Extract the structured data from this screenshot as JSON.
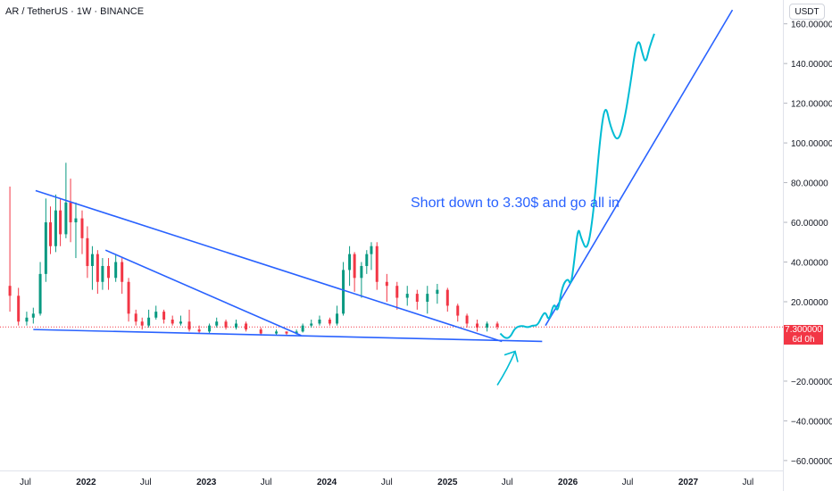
{
  "header": {
    "symbol": "AR / TetherUS · 1W · BINANCE"
  },
  "price_scale": {
    "currency": "USDT"
  },
  "last_price": {
    "value": "7.300000",
    "countdown": "6d 0h",
    "color": "#f23645"
  },
  "annotation": {
    "text": "Short down to 3.30$ and go all in",
    "color": "#2962ff"
  },
  "colors": {
    "up": "#089981",
    "down": "#f23645",
    "trendline": "#2962ff",
    "projection": "#00bcd4"
  },
  "chart_data": {
    "type": "candlestick",
    "interval": "1W",
    "y_ticks": [
      160,
      140,
      120,
      100,
      80,
      60,
      40,
      20,
      -20,
      -40,
      -60
    ],
    "y_tick_labels": [
      "160.00000",
      "140.00000",
      "120.00000",
      "100.00000",
      "80.00000",
      "60.00000",
      "40.00000",
      "20.00000",
      "−20.00000",
      "−40.00000",
      "−60.00000"
    ],
    "ylim": [
      -65,
      172
    ],
    "x_ticks": [
      "Jul",
      "2022",
      "Jul",
      "2023",
      "Jul",
      "2024",
      "Jul",
      "2025",
      "Jul",
      "2026",
      "Jul",
      "2027",
      "Jul"
    ],
    "xlim": [
      "2021-04-15",
      "2027-10-15"
    ],
    "price_path": [
      [
        "2021-05-15",
        28,
        23,
        78,
        15
      ],
      [
        "2021-06-10",
        23,
        10,
        27,
        8
      ],
      [
        "2021-07-05",
        10,
        12,
        15,
        8
      ],
      [
        "2021-07-25",
        12,
        14,
        17,
        9
      ],
      [
        "2021-08-15",
        14,
        34,
        40,
        13
      ],
      [
        "2021-09-01",
        34,
        60,
        72,
        30
      ],
      [
        "2021-09-15",
        60,
        48,
        68,
        44
      ],
      [
        "2021-10-01",
        48,
        66,
        74,
        45
      ],
      [
        "2021-10-15",
        66,
        54,
        72,
        48
      ],
      [
        "2021-11-01",
        54,
        70,
        90,
        52
      ],
      [
        "2021-11-15",
        70,
        60,
        82,
        50
      ],
      [
        "2021-12-01",
        60,
        62,
        70,
        42
      ],
      [
        "2021-12-20",
        62,
        52,
        66,
        44
      ],
      [
        "2022-01-05",
        52,
        38,
        58,
        32
      ],
      [
        "2022-01-20",
        38,
        44,
        48,
        26
      ],
      [
        "2022-02-05",
        44,
        30,
        46,
        24
      ],
      [
        "2022-02-20",
        30,
        38,
        42,
        26
      ],
      [
        "2022-03-10",
        38,
        32,
        42,
        26
      ],
      [
        "2022-04-01",
        32,
        40,
        44,
        30
      ],
      [
        "2022-04-20",
        40,
        30,
        42,
        24
      ],
      [
        "2022-05-10",
        30,
        14,
        32,
        10
      ],
      [
        "2022-06-01",
        14,
        10,
        16,
        8
      ],
      [
        "2022-06-20",
        10,
        8,
        12,
        6
      ],
      [
        "2022-07-10",
        8,
        12,
        16,
        7
      ],
      [
        "2022-08-01",
        12,
        15,
        18,
        11
      ],
      [
        "2022-08-25",
        15,
        11,
        16,
        9
      ],
      [
        "2022-09-20",
        11,
        9,
        13,
        8
      ],
      [
        "2022-10-15",
        9,
        10,
        13,
        8
      ],
      [
        "2022-11-10",
        10,
        6,
        16,
        5
      ],
      [
        "2022-12-10",
        6,
        5,
        8,
        4
      ],
      [
        "2023-01-10",
        5,
        8,
        9,
        4
      ],
      [
        "2023-02-01",
        8,
        10,
        12,
        7
      ],
      [
        "2023-03-01",
        10,
        7,
        11,
        6
      ],
      [
        "2023-04-01",
        7,
        9,
        11,
        6
      ],
      [
        "2023-05-01",
        9,
        6,
        10,
        5
      ],
      [
        "2023-06-15",
        6,
        4,
        7,
        3
      ],
      [
        "2023-08-01",
        4,
        5,
        6,
        3
      ],
      [
        "2023-09-01",
        5,
        4,
        5,
        3
      ],
      [
        "2023-10-01",
        4,
        5,
        6,
        3.5
      ],
      [
        "2023-10-20",
        5,
        8,
        9,
        4.5
      ],
      [
        "2023-11-15",
        8,
        9,
        11,
        7
      ],
      [
        "2023-12-10",
        9,
        11,
        13,
        8
      ],
      [
        "2024-01-10",
        11,
        9,
        12,
        8
      ],
      [
        "2024-02-01",
        9,
        14,
        18,
        8
      ],
      [
        "2024-02-20",
        14,
        36,
        40,
        13
      ],
      [
        "2024-03-10",
        36,
        44,
        48,
        28
      ],
      [
        "2024-03-25",
        44,
        32,
        45,
        25
      ],
      [
        "2024-04-15",
        32,
        38,
        40,
        22
      ],
      [
        "2024-05-01",
        38,
        44,
        46,
        34
      ],
      [
        "2024-05-15",
        44,
        48,
        50,
        36
      ],
      [
        "2024-06-01",
        48,
        30,
        50,
        26
      ],
      [
        "2024-07-01",
        30,
        28,
        34,
        20
      ],
      [
        "2024-08-01",
        28,
        22,
        30,
        16
      ],
      [
        "2024-09-01",
        22,
        24,
        28,
        18
      ],
      [
        "2024-10-01",
        24,
        20,
        26,
        16
      ],
      [
        "2024-11-01",
        20,
        24,
        28,
        14
      ],
      [
        "2024-12-01",
        24,
        26,
        29,
        19
      ],
      [
        "2025-01-01",
        26,
        18,
        27,
        15
      ],
      [
        "2025-02-01",
        18,
        13,
        19,
        10
      ],
      [
        "2025-03-01",
        13,
        9,
        14,
        7
      ],
      [
        "2025-04-01",
        9,
        7,
        11,
        5
      ],
      [
        "2025-05-01",
        7,
        9,
        10,
        5
      ],
      [
        "2025-06-01",
        9,
        7.3,
        10,
        6
      ]
    ],
    "trendlines": [
      {
        "from": [
          "2021-08-01",
          76
        ],
        "to": [
          "2025-06-15",
          0
        ]
      },
      {
        "from": [
          "2022-03-01",
          46
        ],
        "to": [
          "2023-10-15",
          3
        ]
      },
      {
        "from": [
          "2021-07-25",
          6
        ],
        "to": [
          "2025-10-15",
          0
        ]
      },
      {
        "from": [
          "2025-10-25",
          8
        ],
        "to": [
          "2027-05-15",
          167
        ]
      }
    ],
    "projection_path": [
      [
        "2025-06-10",
        4
      ],
      [
        "2025-06-25",
        1.5
      ],
      [
        "2025-07-10",
        2
      ],
      [
        "2025-07-25",
        7
      ],
      [
        "2025-08-15",
        8
      ],
      [
        "2025-09-01",
        7
      ],
      [
        "2025-09-15",
        8
      ],
      [
        "2025-10-01",
        8
      ],
      [
        "2025-10-15",
        13
      ],
      [
        "2025-10-25",
        15
      ],
      [
        "2025-11-05",
        10
      ],
      [
        "2025-11-20",
        20
      ],
      [
        "2025-12-01",
        14
      ],
      [
        "2025-12-15",
        28
      ],
      [
        "2026-01-01",
        32
      ],
      [
        "2026-01-10",
        28
      ],
      [
        "2026-01-20",
        40
      ],
      [
        "2026-02-01",
        58
      ],
      [
        "2026-02-10",
        52
      ],
      [
        "2026-03-01",
        45
      ],
      [
        "2026-03-20",
        65
      ],
      [
        "2026-04-10",
        105
      ],
      [
        "2026-04-25",
        120
      ],
      [
        "2026-05-10",
        108
      ],
      [
        "2026-06-01",
        100
      ],
      [
        "2026-06-20",
        110
      ],
      [
        "2026-07-10",
        130
      ],
      [
        "2026-07-25",
        148
      ],
      [
        "2026-08-05",
        152
      ],
      [
        "2026-08-15",
        145
      ],
      [
        "2026-08-25",
        140
      ],
      [
        "2026-09-05",
        148
      ],
      [
        "2026-09-20",
        155
      ]
    ],
    "arrow": {
      "from": [
        "2025-06-01",
        -22
      ],
      "to": [
        "2025-07-25",
        -5
      ]
    },
    "last_price_line": 7.3
  }
}
